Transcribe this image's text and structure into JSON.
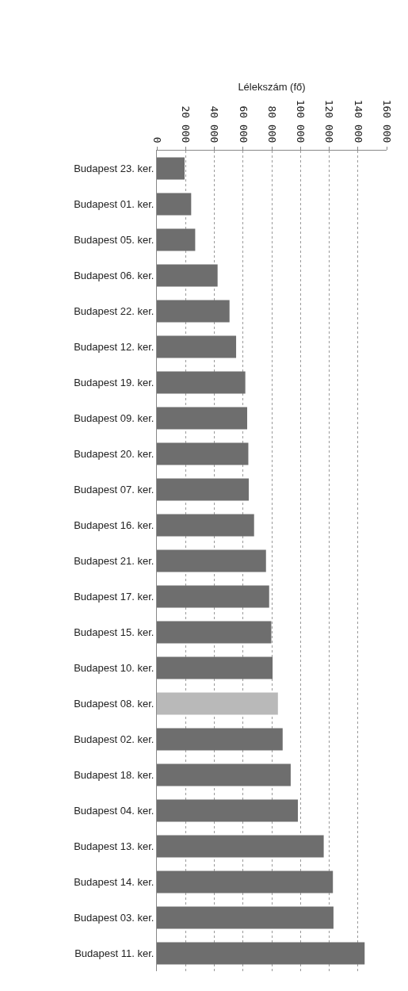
{
  "chart_data": {
    "type": "bar",
    "orientation": "horizontal",
    "xlabel": "Lélekszám (fő)",
    "categories": [
      "Budapest 23. ker.",
      "Budapest 01. ker.",
      "Budapest 05. ker.",
      "Budapest 06. ker.",
      "Budapest 22. ker.",
      "Budapest 12. ker.",
      "Budapest 19. ker.",
      "Budapest 09. ker.",
      "Budapest 20. ker.",
      "Budapest 07. ker.",
      "Budapest 16. ker.",
      "Budapest 21. ker.",
      "Budapest 17. ker.",
      "Budapest 15. ker.",
      "Budapest 10. ker.",
      "Budapest 08. ker.",
      "Budapest 02. ker.",
      "Budapest 18. ker.",
      "Budapest 04. ker.",
      "Budapest 13. ker.",
      "Budapest 14. ker.",
      "Budapest 03. ker.",
      "Budapest 11. ker."
    ],
    "values": [
      19300,
      23900,
      26700,
      42300,
      50600,
      55200,
      61600,
      62900,
      63700,
      64000,
      67700,
      76000,
      78200,
      79700,
      80600,
      84300,
      87600,
      93200,
      98200,
      116200,
      122600,
      123000,
      144700
    ],
    "colors": [
      "#6e6e6e",
      "#6e6e6e",
      "#6e6e6e",
      "#6e6e6e",
      "#6e6e6e",
      "#6e6e6e",
      "#6e6e6e",
      "#6e6e6e",
      "#6e6e6e",
      "#6e6e6e",
      "#6e6e6e",
      "#6e6e6e",
      "#6e6e6e",
      "#6e6e6e",
      "#6e6e6e",
      "#b9b9b9",
      "#6e6e6e",
      "#6e6e6e",
      "#6e6e6e",
      "#6e6e6e",
      "#6e6e6e",
      "#6e6e6e",
      "#6e6e6e"
    ],
    "xlim": [
      0,
      160000
    ],
    "xticks": [
      {
        "value": 0,
        "label": "0"
      },
      {
        "value": 20000,
        "label": "20 000"
      },
      {
        "value": 40000,
        "label": "40 000"
      },
      {
        "value": 60000,
        "label": "60 000"
      },
      {
        "value": 80000,
        "label": "80 000"
      },
      {
        "value": 100000,
        "label": "100 000"
      },
      {
        "value": 120000,
        "label": "120 000"
      },
      {
        "value": 140000,
        "label": "140 000"
      },
      {
        "value": 160000,
        "label": "160 000"
      }
    ],
    "grid": "x"
  }
}
